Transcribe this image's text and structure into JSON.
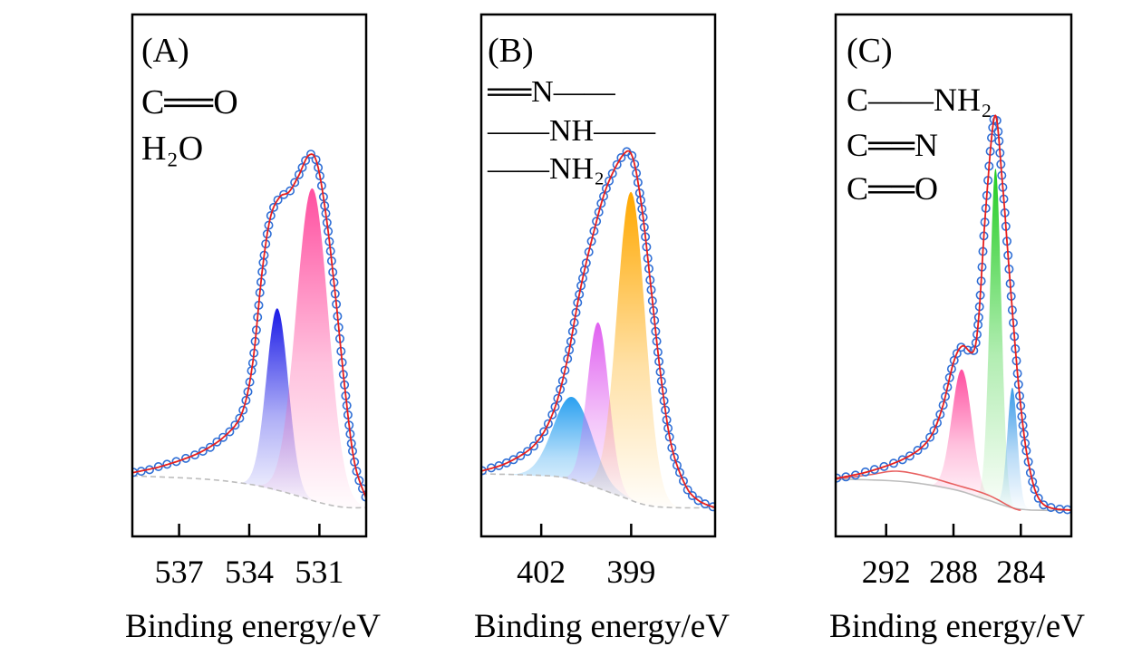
{
  "chart_data": [
    {
      "type": "line",
      "panel_label": "(A)",
      "species_labels": [
        "C══O",
        "H₂O"
      ],
      "xlabel": "Binding energy/eV",
      "ylabel": "",
      "xlim": [
        539,
        529
      ],
      "x_reversed": true,
      "ylim": [
        0,
        100
      ],
      "y_ticks_shown": false,
      "grid": false,
      "xticks": [
        537,
        534,
        531
      ],
      "measured_envelope": [
        [
          539,
          12.2
        ],
        [
          537.7,
          13.5
        ],
        [
          536.15,
          16
        ],
        [
          535,
          19.4
        ],
        [
          534.3,
          23.8
        ],
        [
          533.85,
          33.3
        ],
        [
          533.45,
          50.7
        ],
        [
          533.1,
          61
        ],
        [
          532.7,
          65
        ],
        [
          532.3,
          66
        ],
        [
          531.9,
          69
        ],
        [
          531.46,
          73
        ],
        [
          531.1,
          71.5
        ],
        [
          530.7,
          61
        ],
        [
          530.3,
          45.5
        ],
        [
          529.9,
          28
        ],
        [
          529.5,
          14.2
        ],
        [
          529,
          7.3
        ]
      ],
      "background": [
        [
          539,
          11.6
        ],
        [
          536,
          11
        ],
        [
          534,
          10
        ],
        [
          532.5,
          8.5
        ],
        [
          531,
          6.5
        ],
        [
          530,
          5.6
        ],
        [
          529,
          5.5
        ]
      ],
      "components": [
        {
          "center": 532.8,
          "peak": 43.7,
          "fwhm": 1.1,
          "color": "#1a1ae6"
        },
        {
          "center": 531.3,
          "peak": 66.7,
          "fwhm": 1.6,
          "color": "#ff4fa0"
        }
      ],
      "colors": {
        "points": "#2f6fd6",
        "fit": "#e8201e",
        "background": "#bdbdbd"
      }
    },
    {
      "type": "line",
      "panel_label": "(B)",
      "species_labels": [
        "══N——",
        "——NH——",
        "——NH₂"
      ],
      "xlabel": "Binding energy/eV",
      "ylabel": "",
      "xlim": [
        404,
        396.2
      ],
      "x_reversed": true,
      "ylim": [
        0,
        100
      ],
      "y_ticks_shown": false,
      "grid": false,
      "xticks": [
        402,
        399
      ],
      "measured_envelope": [
        [
          404,
          12.5
        ],
        [
          403.1,
          14.2
        ],
        [
          402.2,
          17.7
        ],
        [
          401.6,
          23.8
        ],
        [
          401.15,
          33.3
        ],
        [
          400.7,
          47.2
        ],
        [
          400.24,
          58.5
        ],
        [
          399.8,
          67.2
        ],
        [
          399.24,
          73.3
        ],
        [
          398.94,
          72.4
        ],
        [
          398.64,
          62.8
        ],
        [
          398.33,
          47.2
        ],
        [
          398.03,
          31.6
        ],
        [
          397.67,
          17.7
        ],
        [
          397.2,
          9.9
        ],
        [
          396.76,
          6.9
        ],
        [
          396.2,
          5.5
        ]
      ],
      "background": [
        [
          404,
          12
        ],
        [
          401.5,
          11.5
        ],
        [
          400.5,
          10
        ],
        [
          399.5,
          8
        ],
        [
          398.5,
          6
        ],
        [
          397.5,
          5.5
        ],
        [
          396.2,
          5.5
        ]
      ],
      "components": [
        {
          "center": 400.95,
          "peak": 26.7,
          "fwhm": 1.5,
          "color": "#2aa0f0"
        },
        {
          "center": 400.1,
          "peak": 41,
          "fwhm": 0.85,
          "color": "#e060f0"
        },
        {
          "center": 399.0,
          "peak": 66,
          "fwhm": 1.1,
          "color": "#ffa800"
        }
      ],
      "colors": {
        "points": "#2f6fd6",
        "fit": "#e8201e",
        "background": "#bdbdbd"
      }
    },
    {
      "type": "line",
      "panel_label": "(C)",
      "species_labels": [
        "C——NH₂",
        "C══N",
        "C══O"
      ],
      "xlabel": "Binding energy/eV",
      "ylabel": "",
      "xlim": [
        295,
        281
      ],
      "x_reversed": true,
      "ylim": [
        0,
        100
      ],
      "y_ticks_shown": false,
      "grid": false,
      "xticks": [
        292,
        288,
        284
      ],
      "measured_envelope": [
        [
          295,
          11.1
        ],
        [
          292.96,
          12.5
        ],
        [
          290.8,
          15.1
        ],
        [
          289.46,
          18.6
        ],
        [
          288.66,
          24.7
        ],
        [
          288,
          33.3
        ],
        [
          287.47,
          36.5
        ],
        [
          286.83,
          35.4
        ],
        [
          286.5,
          42
        ],
        [
          286.08,
          62.8
        ],
        [
          285.54,
          80.6
        ],
        [
          285.1,
          68
        ],
        [
          284.6,
          47.2
        ],
        [
          284.1,
          28
        ],
        [
          283.55,
          14.2
        ],
        [
          282.74,
          6.4
        ],
        [
          281,
          5
        ]
      ],
      "background": [
        [
          295,
          11
        ],
        [
          291,
          10.5
        ],
        [
          288,
          9
        ],
        [
          286,
          7
        ],
        [
          284,
          5.2
        ],
        [
          281,
          5
        ]
      ],
      "extra_background": {
        "points": [
          [
            295,
            11
          ],
          [
            293,
            11.8
          ],
          [
            291.5,
            12.5
          ],
          [
            290,
            11.8
          ],
          [
            288,
            10
          ],
          [
            286,
            8
          ],
          [
            284.5,
            5.5
          ],
          [
            284,
            5
          ]
        ],
        "color": "#e86060"
      },
      "components": [
        {
          "center": 287.5,
          "peak": 32,
          "fwhm": 1.4,
          "color": "#ff4fa0"
        },
        {
          "center": 285.5,
          "peak": 70.5,
          "fwhm": 0.8,
          "color": "#22cc22"
        },
        {
          "center": 284.5,
          "peak": 28.5,
          "fwhm": 0.7,
          "color": "#3a9ae8"
        }
      ],
      "colors": {
        "points": "#2f6fd6",
        "fit": "#e8201e",
        "background": "#bdbdbd"
      }
    }
  ]
}
